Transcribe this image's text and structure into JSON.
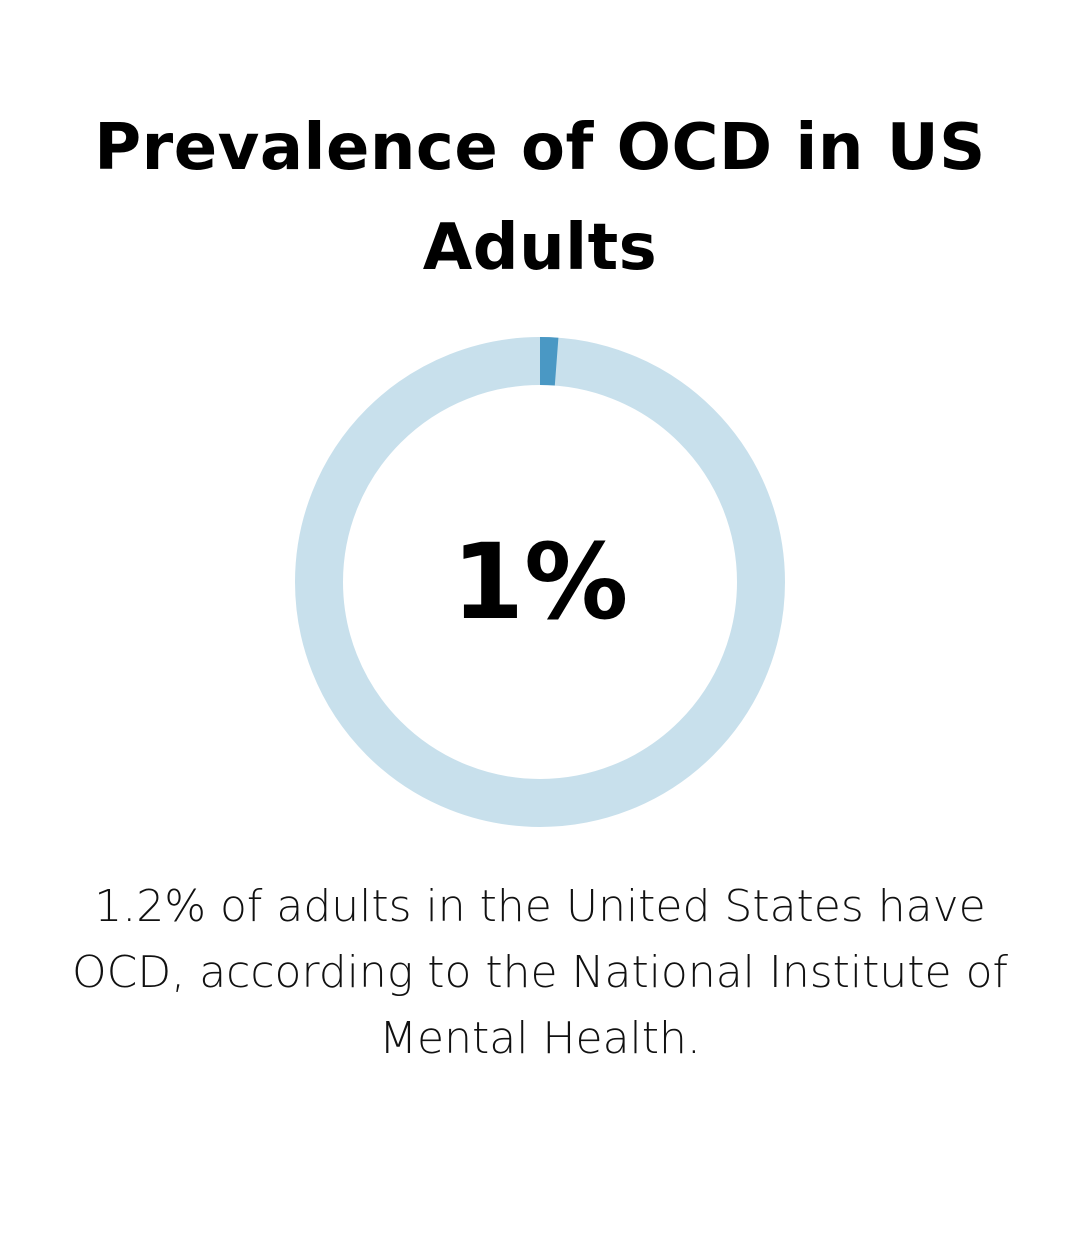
{
  "title": "Prevalence of OCD in US Adults",
  "description": "1.2% of adults in the United States have OCD, according to the National Institute of Mental Health.",
  "chart_data": {
    "type": "pie",
    "center_label": "1%",
    "slices": [
      {
        "label": "",
        "value": 1.2,
        "color": "#4a98c4"
      },
      {
        "label": "",
        "value": 98.8,
        "color": "#c8e0ec"
      }
    ]
  }
}
